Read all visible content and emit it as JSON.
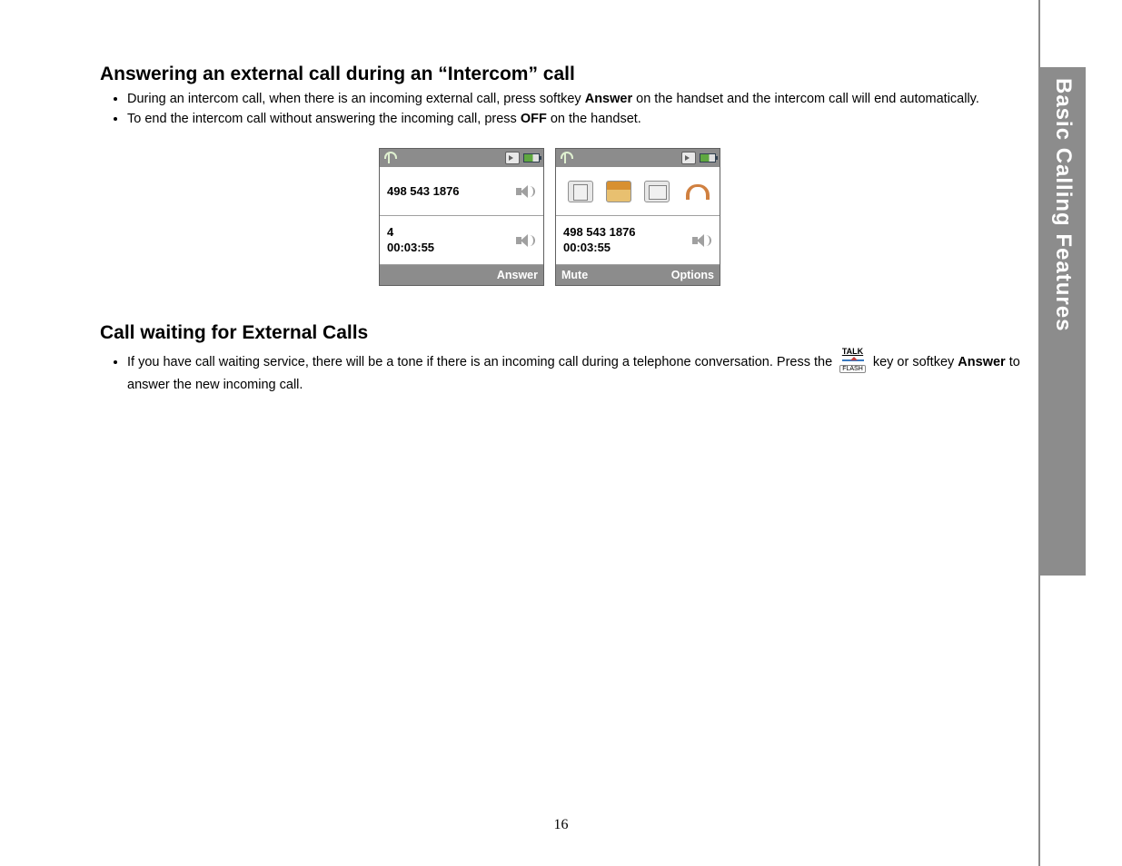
{
  "page_number": "16",
  "sidebar_label": "Basic Calling Features",
  "section1": {
    "heading": "Answering an external call during an “Intercom” call",
    "bullets": [
      {
        "pre": "During an intercom call, when there is an incoming external call, press softkey ",
        "bold": "Answer",
        "post": " on the handset and the intercom call will end automatically."
      },
      {
        "pre": "To end the intercom call without answering the incoming call, press ",
        "bold": "OFF",
        "post": " on the handset."
      }
    ]
  },
  "phone_left": {
    "row1_number": "498 543 1876",
    "row2_line1": "4",
    "row2_line2": "00:03:55",
    "softkey_left": "",
    "softkey_right": "Answer"
  },
  "phone_right": {
    "row2_line1": "498 543 1876",
    "row2_line2": "00:03:55",
    "softkey_left": "Mute",
    "softkey_right": "Options"
  },
  "section2": {
    "heading": "Call waiting for External Calls",
    "bullet": {
      "pre1": "If you have call waiting service, there will be a tone if there is an incoming call during a telephone conversation. Press the ",
      "post1": " key or softkey ",
      "bold": "Answer",
      "post2": " to answer the new incoming call."
    }
  },
  "talk_key": {
    "top": "TALK",
    "bottom": "FLASH"
  },
  "colors": {
    "sidebar_bg": "#8c8c8c",
    "sidebar_fg": "#ffffff",
    "text": "#000000",
    "phone_statusbar": "#8c8c8c"
  },
  "typography": {
    "body_font": "Verdana",
    "heading_size_pt": 16,
    "body_size_pt": 11
  }
}
